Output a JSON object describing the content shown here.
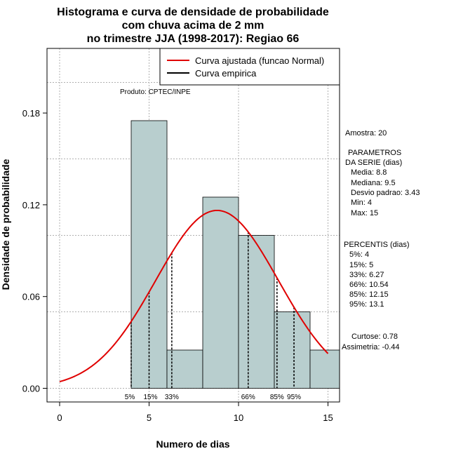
{
  "chart_data": {
    "type": "bar",
    "title_lines": [
      "Histograma e curva de densidade de probabilidade",
      "com chuva acima de 2 mm",
      "no trimestre JJA (1998-2017): Regiao 66"
    ],
    "xlabel": "Numero de dias",
    "ylabel": "Densidade de probabilidade",
    "xlim": [
      -1,
      15.6
    ],
    "ylim": [
      -0.009,
      0.225
    ],
    "x_ticks": [
      0,
      5,
      10,
      15
    ],
    "y_ticks": [
      0.0,
      0.06,
      0.12,
      0.18
    ],
    "y_tick_labels": [
      "0.00",
      "0.06",
      "0.12",
      "0.18"
    ],
    "x_grid": [
      0,
      5,
      10,
      15
    ],
    "y_grid": [
      0.0,
      0.05,
      0.1,
      0.15,
      0.2
    ],
    "bar_color": "#b8cece",
    "bins": [
      {
        "start": 4,
        "end": 6,
        "density": 0.175
      },
      {
        "start": 6,
        "end": 8,
        "density": 0.025
      },
      {
        "start": 8,
        "end": 10,
        "density": 0.125
      },
      {
        "start": 10,
        "end": 12,
        "density": 0.1
      },
      {
        "start": 12,
        "end": 14,
        "density": 0.05
      },
      {
        "start": 14,
        "end": 16,
        "density": 0.025
      }
    ],
    "normal_fit": {
      "mean": 8.8,
      "sd": 3.43,
      "x_from": 0,
      "x_to": 15,
      "color": "#e00000"
    },
    "percentile_lines": [
      {
        "label": "5%",
        "value": 4
      },
      {
        "label": "15%",
        "value": 5
      },
      {
        "label": "33%",
        "value": 6.27
      },
      {
        "label": "66%",
        "value": 10.54
      },
      {
        "label": "85%",
        "value": 12.15
      },
      {
        "label": "95%",
        "value": 13.1
      }
    ],
    "legend": {
      "placement": "top-right",
      "entries": [
        {
          "label": "Curva ajustada (funcao Normal)",
          "color": "#e00000"
        },
        {
          "label": "Curva empirica",
          "color": "#000000"
        }
      ]
    },
    "annotation_product": "Produto: CPTEC/INPE"
  },
  "stats_panel": {
    "amostra": "Amostra: 20",
    "params_title_1": "PARAMETROS",
    "params_title_2": "DA SERIE (dias)",
    "media": "Media: 8.8",
    "mediana": "Mediana: 9.5",
    "desvio": "Desvio padrao: 3.43",
    "min": "Min: 4",
    "max": "Max: 15",
    "percentis_title": "PERCENTIS (dias)",
    "p5": "5%: 4",
    "p15": "15%: 5",
    "p33": "33%: 6.27",
    "p66": "66%: 10.54",
    "p85": "85%: 12.15",
    "p95": "95%: 13.1",
    "curtose": "Curtose: 0.78",
    "assimetria": "Assimetria: -0.44"
  }
}
